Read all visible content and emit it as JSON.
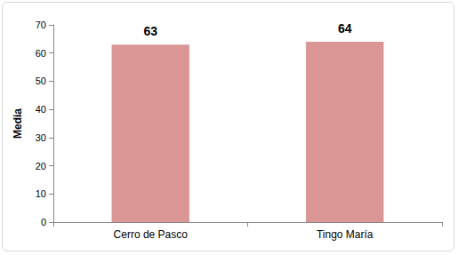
{
  "chart_data": {
    "type": "bar",
    "categories": [
      "Cerro de Pasco",
      "Tingo María"
    ],
    "values": [
      63,
      64
    ],
    "color": "#d99694",
    "ylabel": "Media",
    "ylim": [
      0,
      70
    ],
    "yticks": [
      0,
      10,
      20,
      30,
      40,
      50,
      60,
      70
    ],
    "grid": false,
    "data_labels": true
  }
}
